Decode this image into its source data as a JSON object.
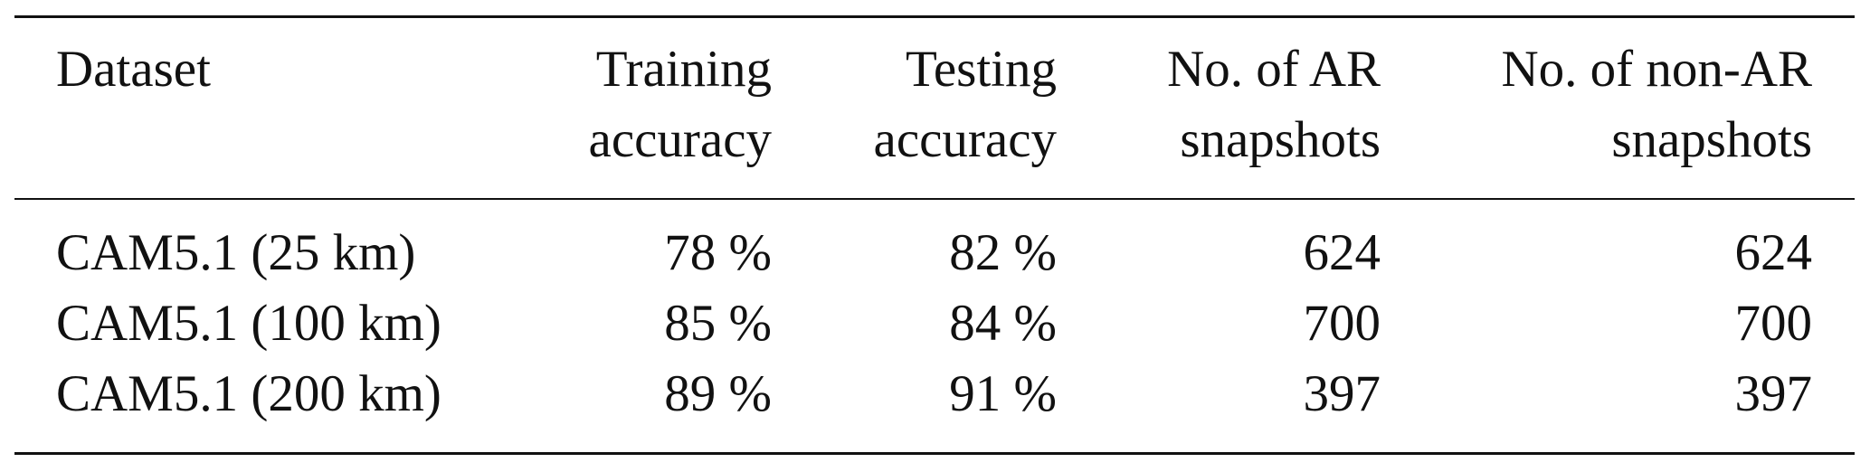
{
  "table": {
    "header": [
      [
        "Dataset"
      ],
      [
        "Training",
        "accuracy"
      ],
      [
        "Testing",
        "accuracy"
      ],
      [
        "No. of AR",
        "snapshots"
      ],
      [
        "No. of non-AR",
        "snapshots"
      ]
    ],
    "rows": [
      [
        "CAM5.1 (25 km)",
        "78 %",
        "82 %",
        "624",
        "624"
      ],
      [
        "CAM5.1 (100 km)",
        "85 %",
        "84 %",
        "700",
        "700"
      ],
      [
        "CAM5.1 (200 km)",
        "89 %",
        "91 %",
        "397",
        "397"
      ]
    ]
  }
}
